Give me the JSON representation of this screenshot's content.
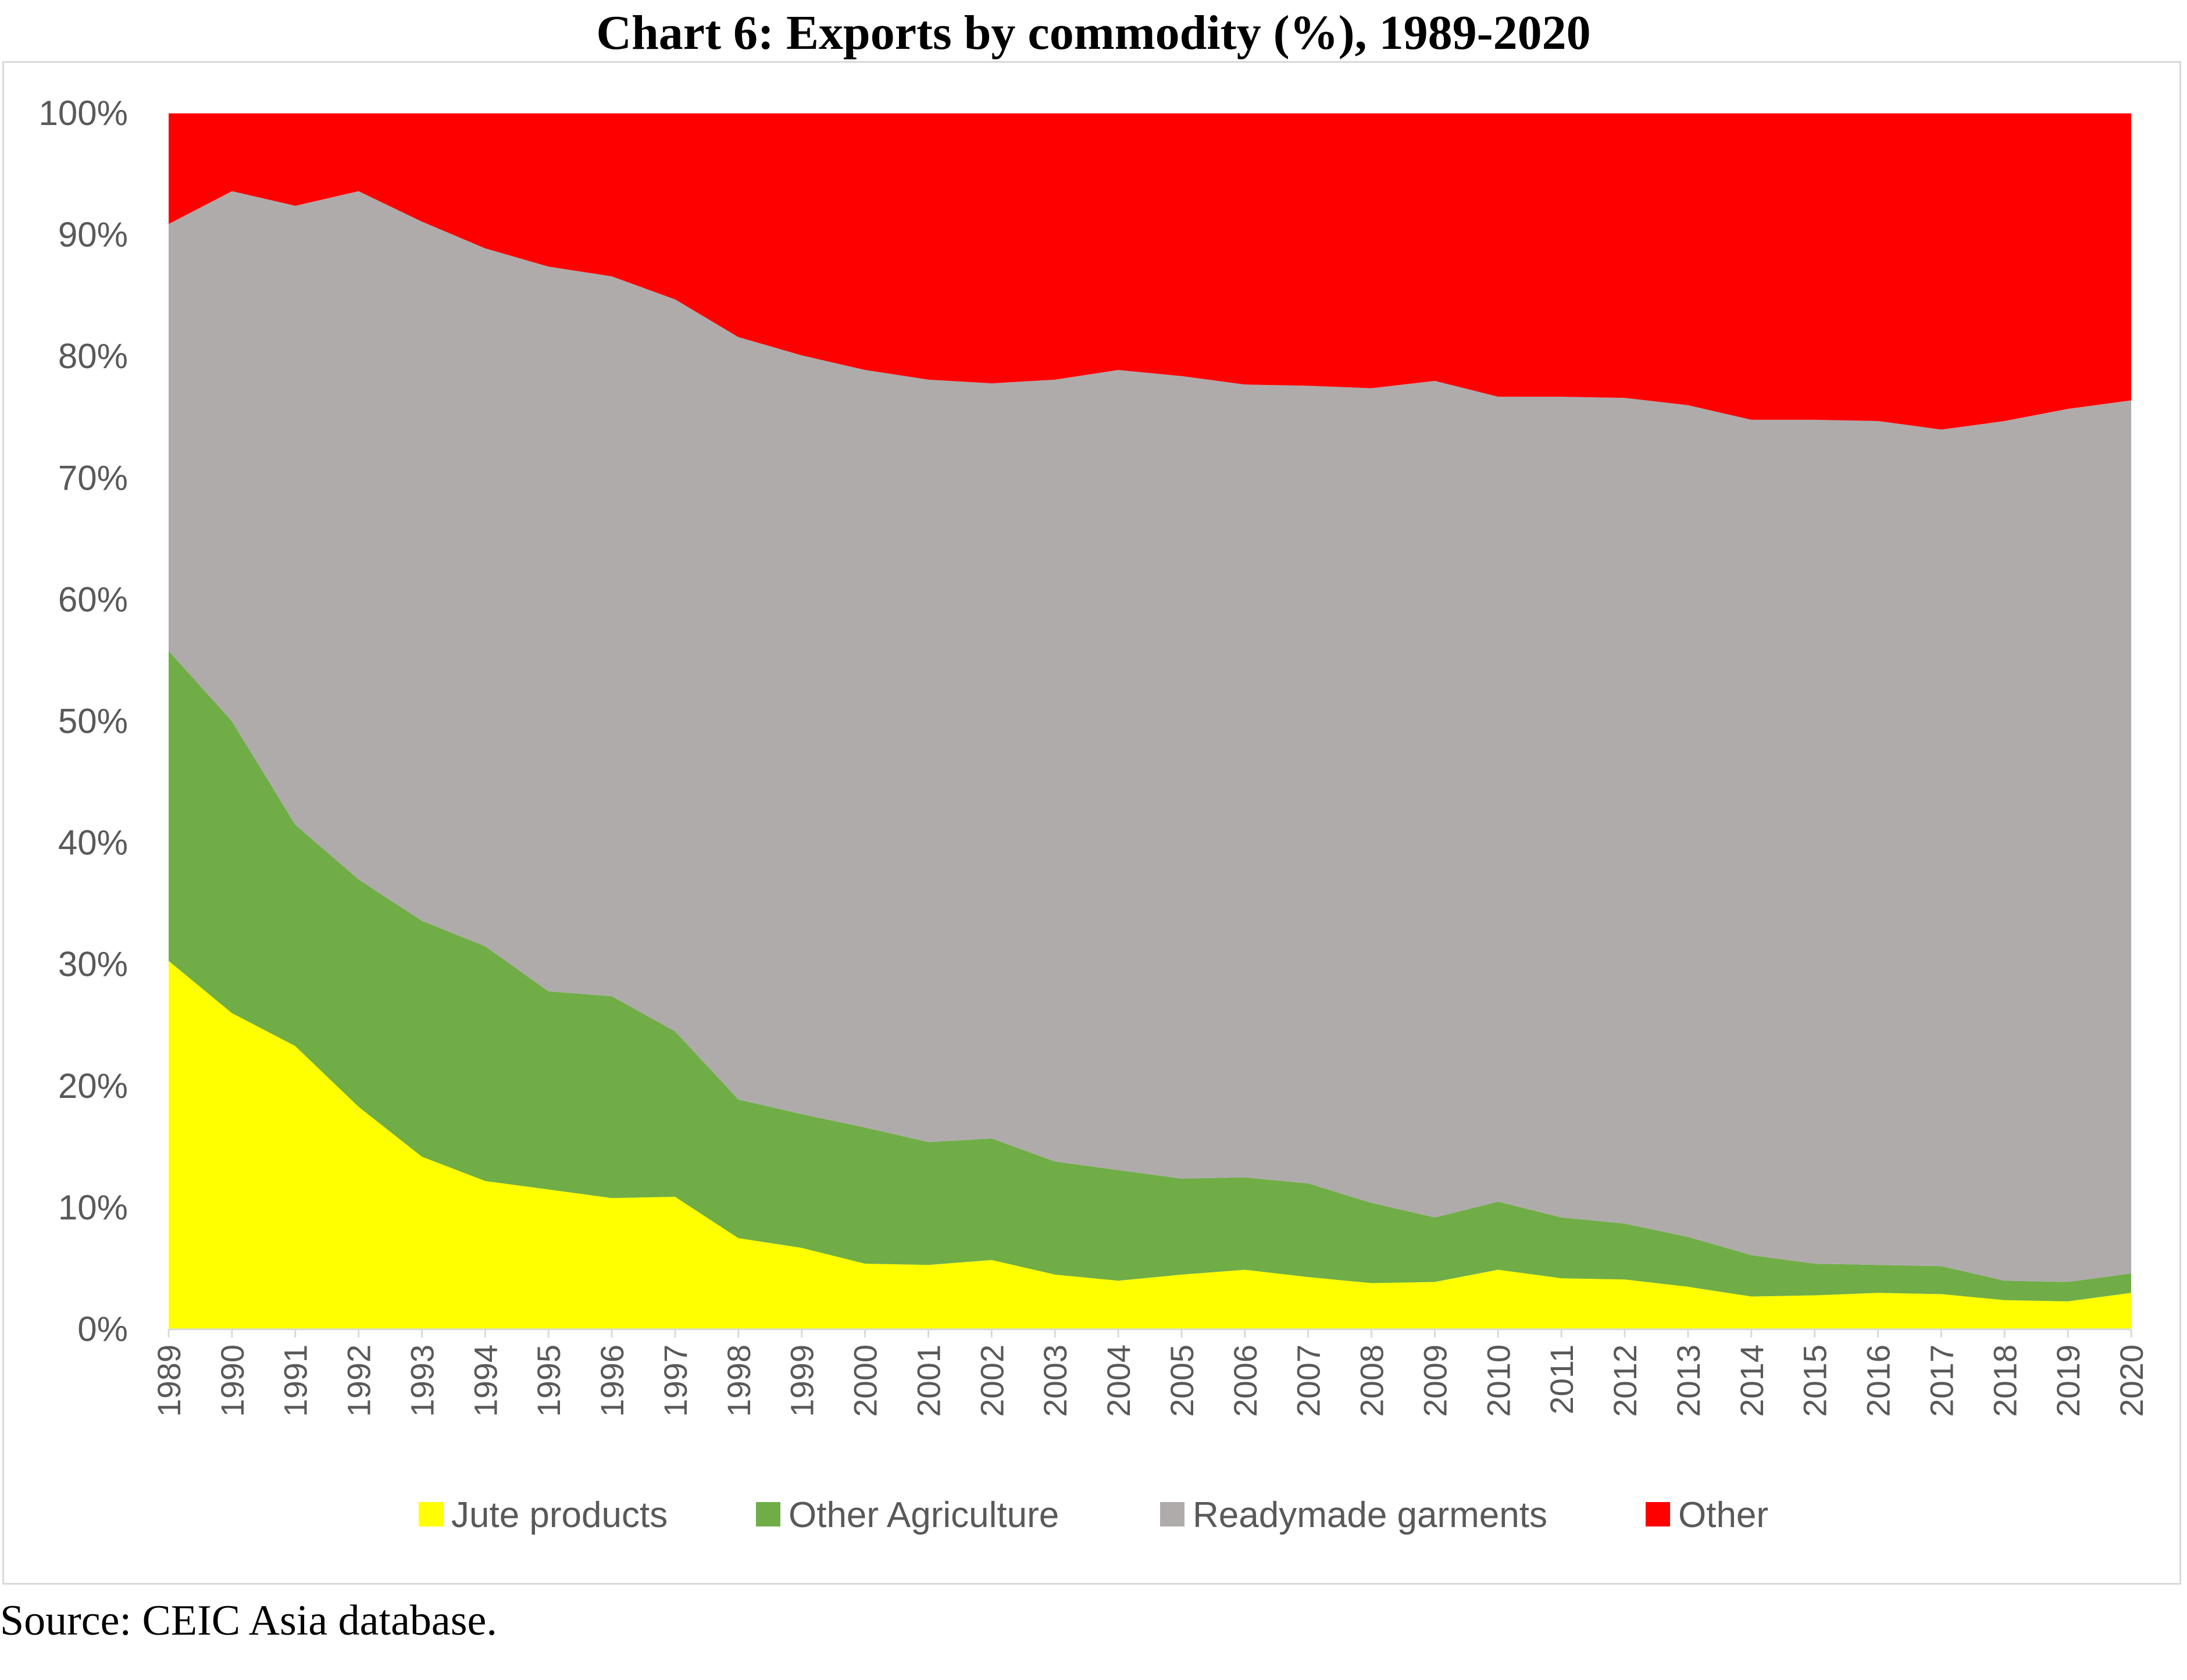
{
  "title": "Chart 6: Exports by commodity (%), 1989-2020",
  "source": "Source: CEIC Asia database.",
  "chart_data": {
    "type": "area",
    "stacked": true,
    "normalized_percent": true,
    "title": "Chart 6: Exports by commodity (%), 1989-2020",
    "xlabel": "",
    "ylabel": "",
    "ylim": [
      0,
      100
    ],
    "yticks": [
      "0%",
      "10%",
      "20%",
      "30%",
      "40%",
      "50%",
      "60%",
      "70%",
      "80%",
      "90%",
      "100%"
    ],
    "grid": false,
    "legend_position": "bottom",
    "x": [
      "1989",
      "1990",
      "1991",
      "1992",
      "1993",
      "1994",
      "1995",
      "1996",
      "1997",
      "1998",
      "1999",
      "2000",
      "2001",
      "2002",
      "2003",
      "2004",
      "2005",
      "2006",
      "2007",
      "2008",
      "2009",
      "2010",
      "2011",
      "2012",
      "2013",
      "2014",
      "2015",
      "2016",
      "2017",
      "2018",
      "2019",
      "2020"
    ],
    "series": [
      {
        "name": "Jute products",
        "color": "#ffff00",
        "values": [
          30.3,
          26.0,
          23.3,
          18.3,
          14.2,
          12.2,
          11.5,
          10.8,
          10.9,
          7.5,
          6.7,
          5.4,
          5.3,
          5.7,
          4.5,
          4.0,
          4.5,
          4.9,
          4.3,
          3.8,
          3.9,
          4.9,
          4.2,
          4.1,
          3.5,
          2.7,
          2.8,
          3.0,
          2.9,
          2.4,
          2.3,
          3.0
        ]
      },
      {
        "name": "Other Agriculture",
        "color": "#70ad47",
        "values": [
          25.5,
          24.0,
          18.2,
          18.7,
          19.4,
          19.3,
          16.3,
          16.6,
          13.6,
          11.4,
          11.0,
          11.2,
          10.1,
          10.0,
          9.3,
          9.1,
          7.9,
          7.6,
          7.7,
          6.6,
          5.3,
          5.6,
          5.0,
          4.6,
          4.1,
          3.4,
          2.6,
          2.3,
          2.3,
          1.6,
          1.6,
          1.6
        ]
      },
      {
        "name": "Readymade garments",
        "color": "#afabab",
        "values": [
          35.1,
          43.6,
          50.9,
          56.6,
          57.5,
          57.4,
          59.6,
          59.2,
          60.2,
          62.7,
          62.4,
          62.3,
          62.7,
          62.1,
          64.3,
          65.8,
          66.0,
          65.2,
          65.6,
          67.0,
          68.8,
          66.2,
          67.5,
          67.9,
          68.4,
          68.7,
          69.4,
          69.4,
          68.8,
          70.7,
          71.8,
          71.8
        ]
      },
      {
        "name": "Other",
        "color": "#ff0000",
        "values": [
          9.1,
          6.4,
          7.6,
          6.4,
          8.9,
          11.1,
          12.6,
          13.4,
          15.3,
          18.4,
          19.9,
          21.1,
          21.9,
          22.2,
          21.9,
          21.1,
          21.6,
          22.3,
          22.4,
          22.6,
          22.0,
          23.3,
          23.3,
          23.4,
          24.0,
          25.2,
          25.2,
          25.3,
          26.0,
          25.3,
          24.3,
          23.6
        ]
      }
    ]
  }
}
